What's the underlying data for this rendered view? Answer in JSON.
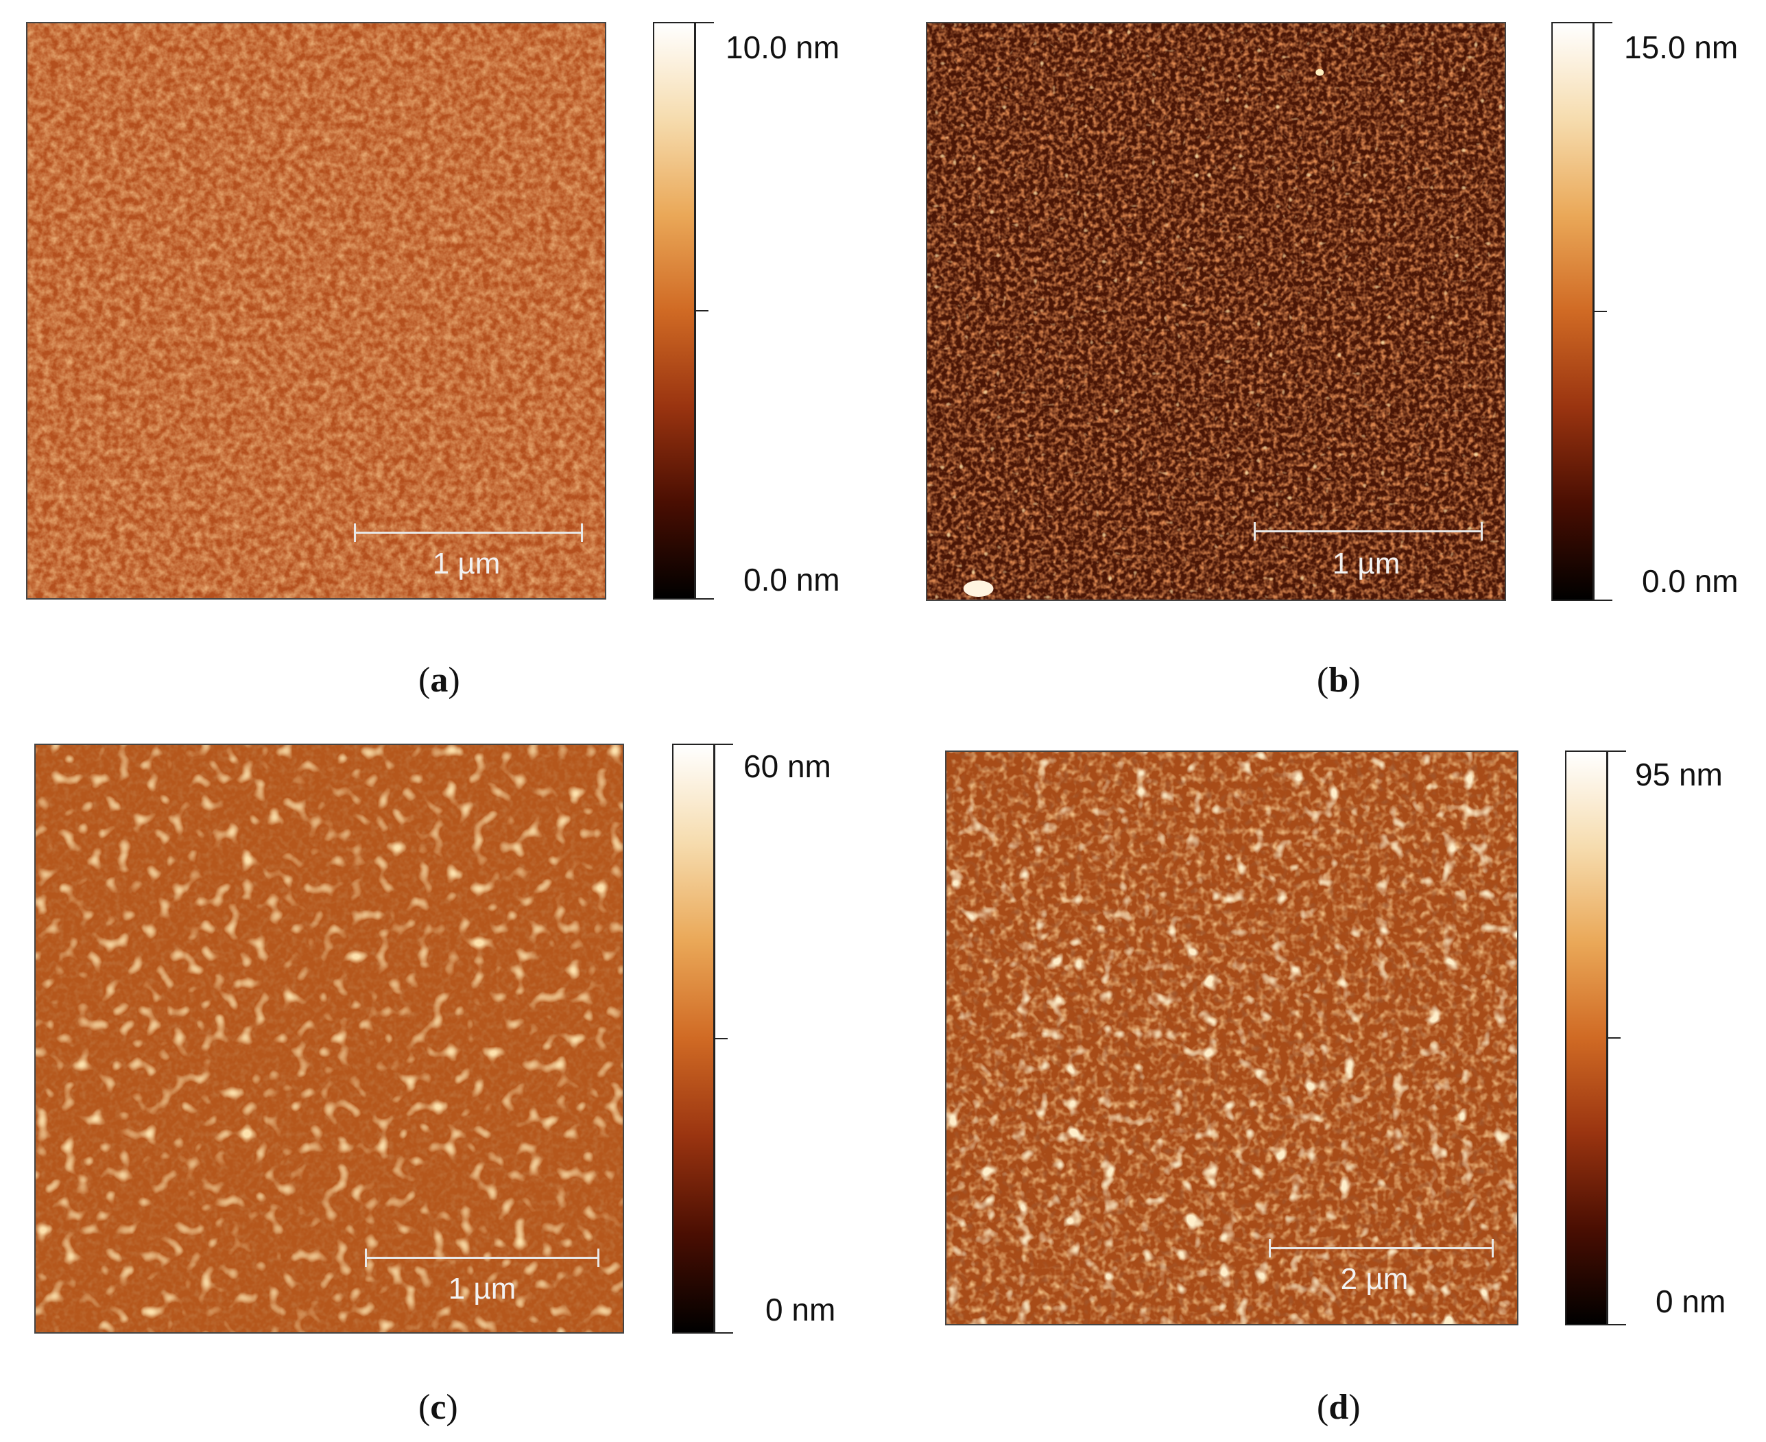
{
  "panels": [
    {
      "id": "a",
      "caption_open": "(",
      "caption_letter": "a",
      "caption_close": ")",
      "scale_label": "1 µm",
      "colorbar_max": "10.0 nm",
      "colorbar_min": "0.0 nm",
      "base_color": "#b4501e",
      "grain_color": "#c8662c"
    },
    {
      "id": "b",
      "caption_open": "(",
      "caption_letter": "b",
      "caption_close": ")",
      "scale_label": "1 µm",
      "colorbar_max": "15.0 nm",
      "colorbar_min": "0.0 nm",
      "base_color": "#4a1606",
      "grain_color": "#a83a12"
    },
    {
      "id": "c",
      "caption_open": "(",
      "caption_letter": "c",
      "caption_close": ")",
      "scale_label": "1 µm",
      "colorbar_max": "60 nm",
      "colorbar_min": "0 nm",
      "base_color": "#b5571c",
      "grain_color": "#e7a24e"
    },
    {
      "id": "d",
      "caption_open": "(",
      "caption_letter": "d",
      "caption_close": ")",
      "scale_label": "2 µm",
      "colorbar_max": "95 nm",
      "colorbar_min": "0 nm",
      "base_color": "#a84c18",
      "grain_color": "#d98a40"
    }
  ],
  "colormap": [
    "#000000",
    "#4a0e02",
    "#9a3410",
    "#d06a24",
    "#eaa858",
    "#f6dcae",
    "#ffffff"
  ]
}
